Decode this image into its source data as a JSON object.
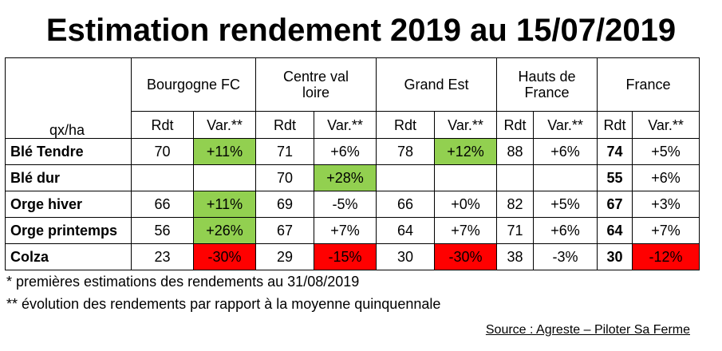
{
  "title": "Estimation rendement 2019 au 15/07/2019",
  "unit_label": "qx/ha",
  "regions": [
    "Bourgogne FC",
    "Centre val loire",
    "Grand Est",
    "Hauts de France",
    "France"
  ],
  "sub_headers": {
    "rdt": "Rdt",
    "var": "Var.**"
  },
  "colors": {
    "positive": "#92d050",
    "negative": "#ff0000"
  },
  "rows": [
    {
      "crop": "Blé Tendre",
      "cells": [
        [
          "70",
          "+11%"
        ],
        [
          "71",
          "+6%"
        ],
        [
          "78",
          "+12%"
        ],
        [
          "88",
          "+6%"
        ],
        [
          "74",
          "+5%"
        ]
      ],
      "highlights": [
        "green",
        "",
        "green",
        "",
        ""
      ]
    },
    {
      "crop": "Blé dur",
      "cells": [
        [
          "",
          ""
        ],
        [
          "70",
          "+28%"
        ],
        [
          "",
          ""
        ],
        [
          "",
          ""
        ],
        [
          "55",
          "+6%"
        ]
      ],
      "highlights": [
        "",
        "green",
        "",
        "",
        ""
      ]
    },
    {
      "crop": "Orge hiver",
      "cells": [
        [
          "66",
          "+11%"
        ],
        [
          "69",
          "-5%"
        ],
        [
          "66",
          "+0%"
        ],
        [
          "82",
          "+5%"
        ],
        [
          "67",
          "+3%"
        ]
      ],
      "highlights": [
        "green",
        "",
        "",
        "",
        ""
      ]
    },
    {
      "crop": "Orge printemps",
      "cells": [
        [
          "56",
          "+26%"
        ],
        [
          "67",
          "+7%"
        ],
        [
          "64",
          "+7%"
        ],
        [
          "71",
          "+6%"
        ],
        [
          "64",
          "+7%"
        ]
      ],
      "highlights": [
        "green",
        "",
        "",
        "",
        ""
      ]
    },
    {
      "crop": "Colza",
      "cells": [
        [
          "23",
          "-30%"
        ],
        [
          "29",
          "-15%"
        ],
        [
          "30",
          "-30%"
        ],
        [
          "38",
          "-3%"
        ],
        [
          "30",
          "-12%"
        ]
      ],
      "highlights": [
        "red",
        "red",
        "red",
        "",
        "red"
      ]
    }
  ],
  "footnotes": [
    "* premières estimations des rendements au 31/08/2019",
    "** évolution des rendements par rapport à la moyenne quinquennale"
  ],
  "source": "Source : Agreste – Piloter Sa Ferme"
}
